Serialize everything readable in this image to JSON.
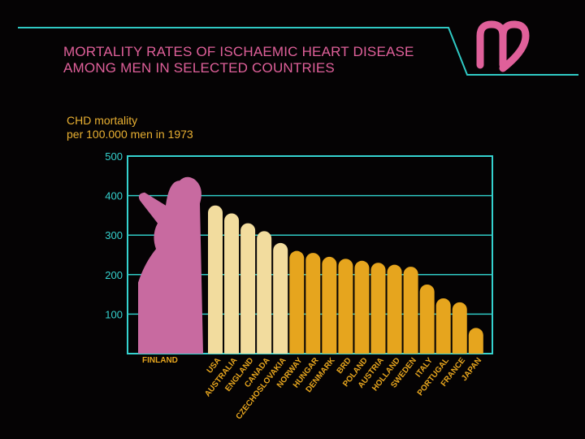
{
  "slide": {
    "title_line1": "MORTALITY RATES OF ISCHAEMIC HEART DISEASE",
    "title_line2": "AMONG MEN IN SELECTED COUNTRIES",
    "subtitle_line1": "CHD mortality",
    "subtitle_line2": "per 100.000 men in 1973",
    "logo_icon": "heart-logo-icon"
  },
  "colors": {
    "frame": "#2fc9c4",
    "title": "#e0609a",
    "subtitle": "#e9b032",
    "finland": "#c86aa0",
    "light_bars": "#f2dc9e",
    "orange_bars": "#e6a51e"
  },
  "chart_data": {
    "type": "bar",
    "title": "",
    "ylabel": "CHD mortality per 100.000 men in 1973",
    "xlabel": "",
    "ylim": [
      0,
      500
    ],
    "yticks": [
      100,
      200,
      300,
      400,
      500
    ],
    "grid": true,
    "categories": [
      "FINLAND",
      "USA",
      "AUSTRALIA",
      "ENGLAND",
      "CANADA",
      "CZECHOSLOVAKIA",
      "NORWAY",
      "HUNGAR",
      "DENMARK",
      "BRD",
      "POLAND",
      "AUSTRIA",
      "HOLLAND",
      "SWEDEN",
      "ITALY",
      "PORTUGAL",
      "FRANCE",
      "JAPAN"
    ],
    "values": [
      450,
      375,
      355,
      330,
      310,
      280,
      260,
      255,
      245,
      240,
      235,
      230,
      225,
      220,
      175,
      140,
      130,
      65
    ],
    "bar_colors": [
      "#c86aa0",
      "#f2dc9e",
      "#f2dc9e",
      "#f2dc9e",
      "#f2dc9e",
      "#f2dc9e",
      "#e6a51e",
      "#e6a51e",
      "#e6a51e",
      "#e6a51e",
      "#e6a51e",
      "#e6a51e",
      "#e6a51e",
      "#e6a51e",
      "#e6a51e",
      "#e6a51e",
      "#e6a51e",
      "#e6a51e"
    ]
  }
}
